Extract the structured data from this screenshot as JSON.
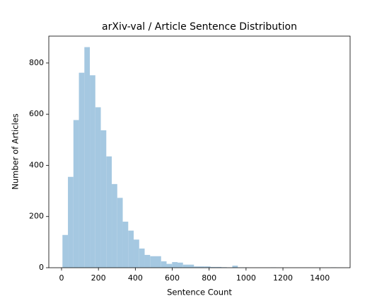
{
  "chart_data": {
    "type": "histogram",
    "title": "arXiv-val / Article Sentence Distribution",
    "xlabel": "Sentence Count",
    "ylabel": "Number of Articles",
    "bins": [
      5,
      34.7,
      64.4,
      94.1,
      123.8,
      153.5,
      183.2,
      212.9,
      242.6,
      272.3,
      302,
      331.7,
      361.4,
      391.1,
      420.8,
      450.5,
      480.2,
      509.9,
      539.6,
      569.3,
      599,
      628.7,
      658.4,
      688.1,
      717.8,
      747.5,
      777.2,
      806.9,
      836.6,
      866.3,
      896,
      925.7,
      955.4,
      985.1,
      1014.8,
      1044.5,
      1074.2,
      1103.9,
      1133.6,
      1163.3,
      1193,
      1222.7,
      1252.4,
      1282.1,
      1311.8,
      1341.5,
      1371.2,
      1400.9,
      1430.6,
      1460.3,
      1490
    ],
    "values": [
      128,
      355,
      577,
      762,
      862,
      752,
      627,
      537,
      435,
      327,
      273,
      180,
      145,
      110,
      75,
      50,
      45,
      45,
      25,
      15,
      22,
      20,
      12,
      12,
      5,
      5,
      5,
      3,
      3,
      2,
      1,
      8,
      1,
      1,
      0,
      0,
      0,
      0,
      1,
      0,
      0,
      0,
      0,
      0,
      0,
      0,
      0,
      0,
      0,
      1
    ],
    "color": "#a5c8e1",
    "xlim": [
      -69,
      1564
    ],
    "xticks": [
      0,
      200,
      400,
      600,
      800,
      1000,
      1200,
      1400
    ],
    "ylim": [
      0,
      905
    ],
    "yticks": [
      0,
      200,
      400,
      600,
      800
    ]
  }
}
